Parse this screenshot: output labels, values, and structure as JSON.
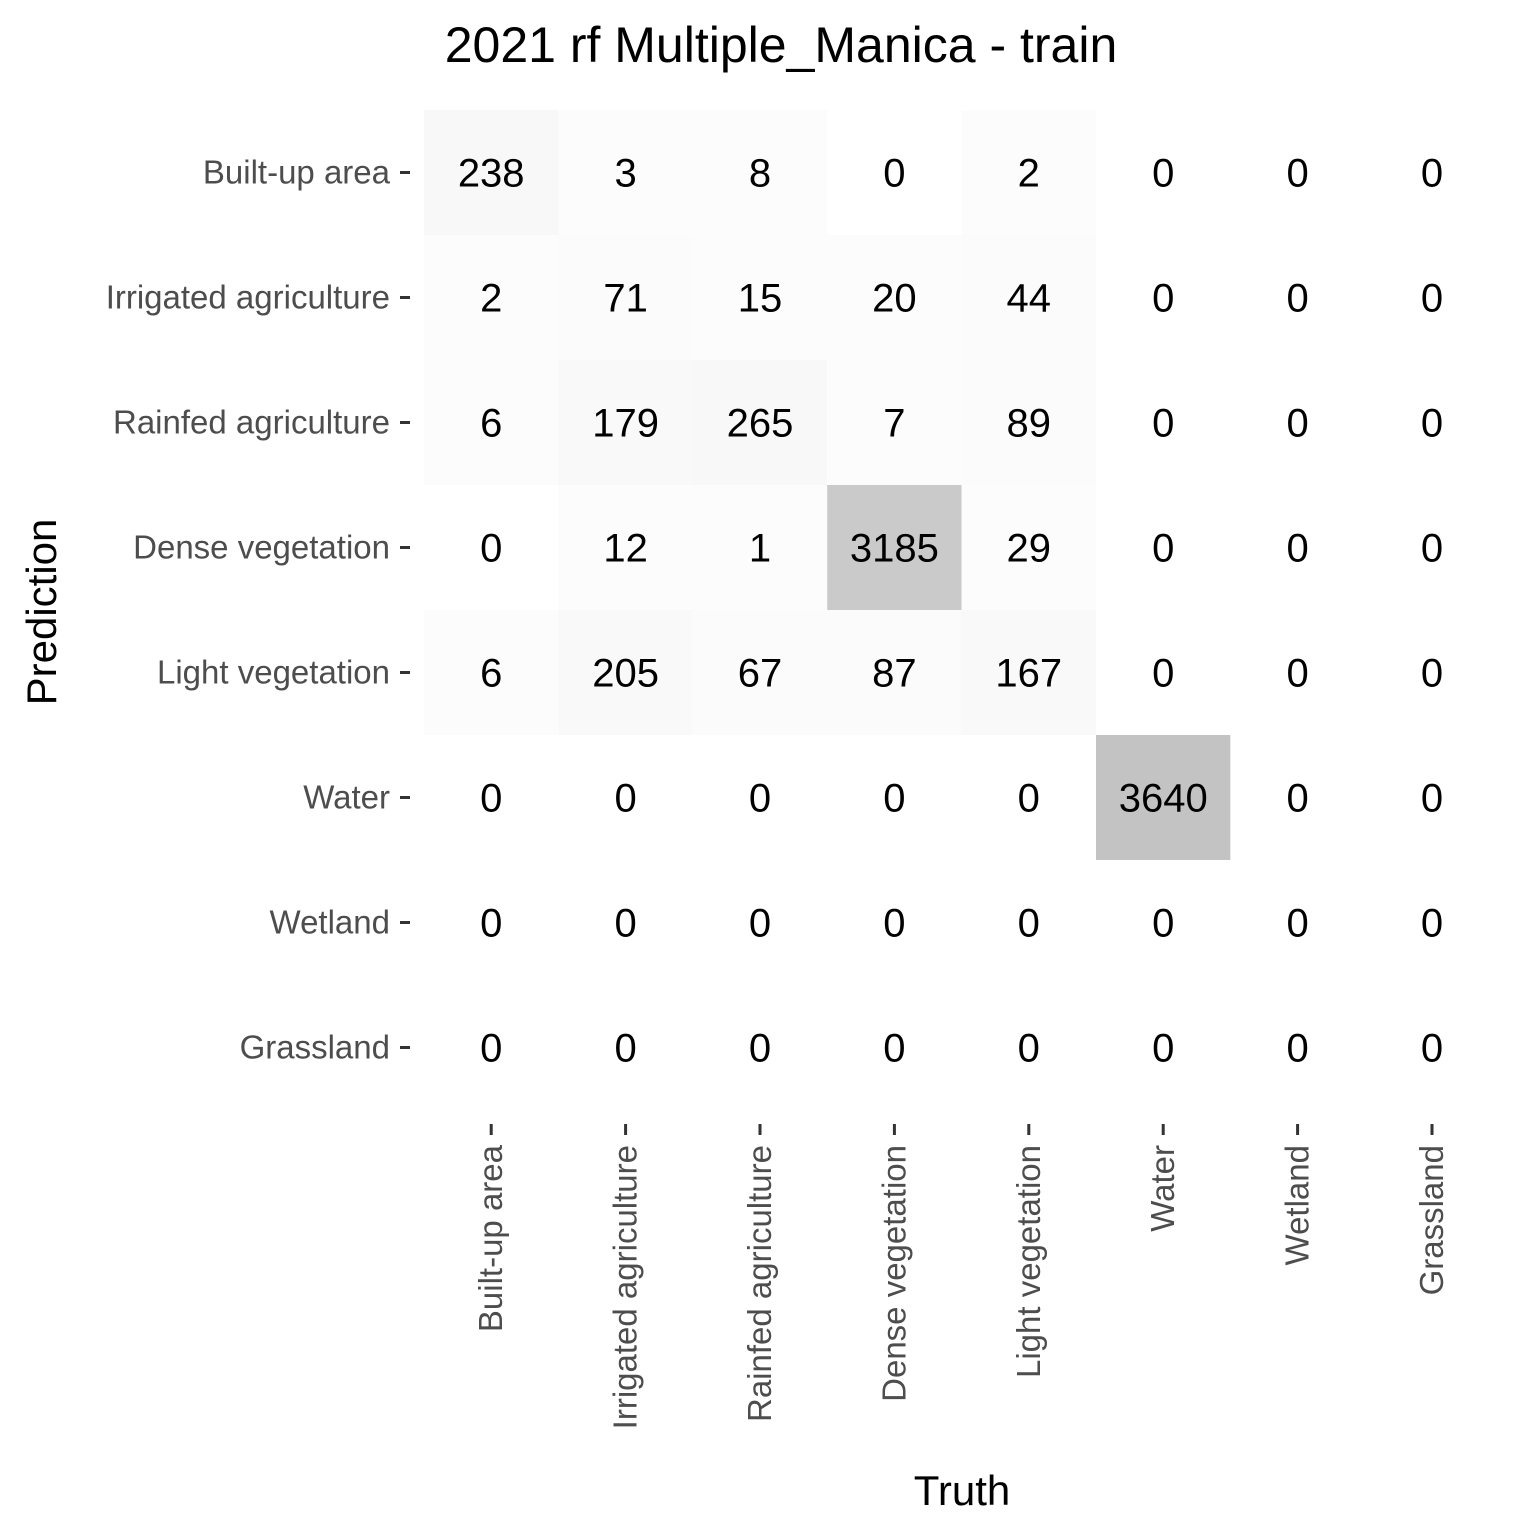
{
  "chart_data": {
    "type": "heatmap",
    "title": "2021 rf Multiple_Manica - train",
    "xlabel": "Truth",
    "ylabel": "Prediction",
    "x_categories": [
      "Built-up area",
      "Irrigated agriculture",
      "Rainfed agriculture",
      "Dense vegetation",
      "Light vegetation",
      "Water",
      "Wetland",
      "Grassland"
    ],
    "y_categories": [
      "Built-up area",
      "Irrigated agriculture",
      "Rainfed agriculture",
      "Dense vegetation",
      "Light vegetation",
      "Water",
      "Wetland",
      "Grassland"
    ],
    "values": [
      [
        238,
        3,
        8,
        0,
        2,
        0,
        0,
        0
      ],
      [
        2,
        71,
        15,
        20,
        44,
        0,
        0,
        0
      ],
      [
        6,
        179,
        265,
        7,
        89,
        0,
        0,
        0
      ],
      [
        0,
        12,
        1,
        3185,
        29,
        0,
        0,
        0
      ],
      [
        6,
        205,
        67,
        87,
        167,
        0,
        0,
        0
      ],
      [
        0,
        0,
        0,
        0,
        0,
        3640,
        0,
        0
      ],
      [
        0,
        0,
        0,
        0,
        0,
        0,
        0,
        0
      ],
      [
        0,
        0,
        0,
        0,
        0,
        0,
        0,
        0
      ]
    ],
    "grid": false,
    "legend": "none",
    "colors": {
      "high": "#c3c3c3",
      "low": "#fcfcfc",
      "zero": "#ffffff"
    }
  }
}
